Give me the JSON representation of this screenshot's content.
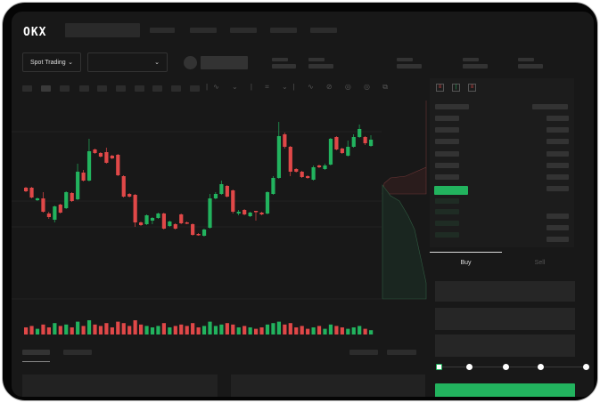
{
  "brand": {
    "logo": "OKX"
  },
  "toolbar": {
    "market_type": "Spot Trading",
    "pair_select": "",
    "chevron": "chevron-down-icon"
  },
  "orderbook": {
    "view_icons": [
      "orderbook-both-icon",
      "orderbook-bids-icon",
      "orderbook-asks-icon"
    ]
  },
  "order_form": {
    "tabs": [
      {
        "label": "Buy",
        "active": true
      },
      {
        "label": "Sell",
        "active": false
      }
    ],
    "slider_steps": 5,
    "slider_value": 0
  },
  "colors": {
    "up": "#22b35e",
    "down": "#e04848",
    "background": "#181818"
  },
  "chart_data": {
    "type": "candlestick",
    "candles": [
      [
        97,
        93,
        98,
        92
      ],
      [
        97,
        86,
        98,
        85
      ],
      [
        83,
        85,
        86,
        82
      ],
      [
        85,
        70,
        92,
        69
      ],
      [
        68,
        64,
        70,
        62
      ],
      [
        61,
        76,
        77,
        58
      ],
      [
        78,
        69,
        79,
        68
      ],
      [
        74,
        92,
        93,
        73
      ],
      [
        91,
        82,
        92,
        81
      ],
      [
        84,
        115,
        124,
        83
      ],
      [
        114,
        105,
        117,
        104
      ],
      [
        105,
        138,
        152,
        104
      ],
      [
        140,
        136,
        141,
        135
      ],
      [
        136,
        132,
        137,
        131
      ],
      [
        137,
        125,
        142,
        124
      ],
      [
        133,
        130,
        134,
        129
      ],
      [
        134,
        111,
        135,
        110
      ],
      [
        110,
        87,
        111,
        86
      ],
      [
        90,
        87,
        91,
        86
      ],
      [
        89,
        58,
        90,
        53
      ],
      [
        58,
        55,
        59,
        54
      ],
      [
        56,
        66,
        67,
        55
      ],
      [
        60,
        63,
        64,
        56
      ],
      [
        63,
        68,
        69,
        62
      ],
      [
        68,
        51,
        69,
        50
      ],
      [
        54,
        59,
        60,
        53
      ],
      [
        56,
        51,
        57,
        50
      ],
      [
        67,
        57,
        68,
        56
      ],
      [
        58,
        57,
        59,
        56
      ],
      [
        56,
        44,
        57,
        43
      ],
      [
        45,
        44,
        46,
        43
      ],
      [
        43,
        50,
        51,
        42
      ],
      [
        52,
        85,
        90,
        51
      ],
      [
        85,
        90,
        92,
        84
      ],
      [
        90,
        101,
        105,
        89
      ],
      [
        99,
        87,
        100,
        86
      ],
      [
        94,
        70,
        95,
        68
      ],
      [
        68,
        70,
        72,
        66
      ],
      [
        72,
        67,
        73,
        66
      ],
      [
        65,
        69,
        70,
        64
      ],
      [
        71,
        70,
        71,
        60
      ],
      [
        69,
        67,
        70,
        66
      ],
      [
        68,
        92,
        93,
        67
      ],
      [
        90,
        108,
        110,
        89
      ],
      [
        108,
        155,
        171,
        107
      ],
      [
        157,
        143,
        159,
        141
      ],
      [
        143,
        115,
        144,
        110
      ],
      [
        118,
        115,
        119,
        114
      ],
      [
        115,
        109,
        116,
        108
      ],
      [
        110,
        108,
        111,
        107
      ],
      [
        106,
        120,
        122,
        105
      ],
      [
        122,
        120,
        123,
        119
      ],
      [
        118,
        122,
        124,
        117
      ],
      [
        123,
        152,
        153,
        122
      ],
      [
        154,
        140,
        155,
        139
      ],
      [
        141,
        136,
        142,
        135
      ],
      [
        133,
        143,
        150,
        132
      ],
      [
        143,
        154,
        157,
        142
      ],
      [
        154,
        163,
        168,
        153
      ],
      [
        154,
        147,
        155,
        145
      ],
      [
        144,
        151,
        156,
        143
      ]
    ],
    "volumes": [
      5,
      6,
      4,
      7,
      5,
      8,
      6,
      7,
      5,
      9,
      6,
      10,
      7,
      6,
      8,
      5,
      9,
      8,
      6,
      10,
      7,
      6,
      5,
      6,
      8,
      5,
      6,
      7,
      6,
      8,
      5,
      6,
      9,
      6,
      7,
      8,
      7,
      5,
      6,
      5,
      4,
      5,
      7,
      8,
      9,
      7,
      8,
      5,
      6,
      4,
      5,
      6,
      4,
      7,
      6,
      5,
      4,
      5,
      6,
      4,
      3
    ],
    "grid": true
  }
}
